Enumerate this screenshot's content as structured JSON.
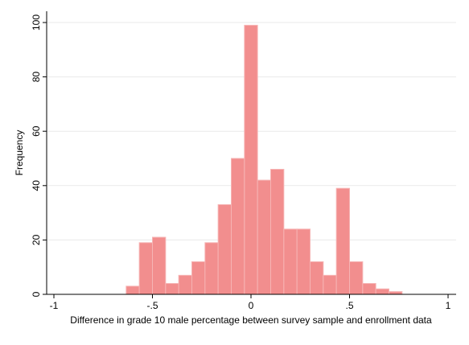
{
  "chart_data": {
    "type": "bar",
    "title": "",
    "xlabel": "Difference in grade 10 male percentage between survey sample and enrollment data",
    "ylabel": "Frequency",
    "xlim": [
      -1,
      1
    ],
    "ylim": [
      0,
      100
    ],
    "x_ticks": [
      "-1",
      "-.5",
      "0",
      ".5",
      "1"
    ],
    "x_tick_values": [
      -1,
      -0.5,
      0,
      0.5,
      1
    ],
    "y_ticks": [
      "0",
      "20",
      "40",
      "60",
      "80",
      "100"
    ],
    "y_tick_values": [
      0,
      20,
      40,
      60,
      80,
      100
    ],
    "grid": true,
    "bin_width": 0.0667,
    "bins": [
      {
        "x0": -0.6333,
        "x1": -0.5667,
        "value": 3
      },
      {
        "x0": -0.5667,
        "x1": -0.5,
        "value": 19
      },
      {
        "x0": -0.5,
        "x1": -0.4333,
        "value": 21
      },
      {
        "x0": -0.4333,
        "x1": -0.3667,
        "value": 4
      },
      {
        "x0": -0.3667,
        "x1": -0.3,
        "value": 7
      },
      {
        "x0": -0.3,
        "x1": -0.2333,
        "value": 12
      },
      {
        "x0": -0.2333,
        "x1": -0.1667,
        "value": 19
      },
      {
        "x0": -0.1667,
        "x1": -0.1,
        "value": 33
      },
      {
        "x0": -0.1,
        "x1": -0.0333,
        "value": 50
      },
      {
        "x0": -0.0333,
        "x1": 0.0333,
        "value": 99
      },
      {
        "x0": 0.0333,
        "x1": 0.1,
        "value": 42
      },
      {
        "x0": 0.1,
        "x1": 0.1667,
        "value": 46
      },
      {
        "x0": 0.1667,
        "x1": 0.2333,
        "value": 24
      },
      {
        "x0": 0.2333,
        "x1": 0.3,
        "value": 24
      },
      {
        "x0": 0.3,
        "x1": 0.3667,
        "value": 12
      },
      {
        "x0": 0.3667,
        "x1": 0.4333,
        "value": 7
      },
      {
        "x0": 0.4333,
        "x1": 0.5,
        "value": 39
      },
      {
        "x0": 0.5,
        "x1": 0.5667,
        "value": 12
      },
      {
        "x0": 0.5667,
        "x1": 0.6333,
        "value": 4
      },
      {
        "x0": 0.6333,
        "x1": 0.7,
        "value": 2
      },
      {
        "x0": 0.7,
        "x1": 0.7667,
        "value": 1
      }
    ],
    "colors": {
      "bar_fill": "#f28e8e",
      "bar_stroke": "#f6b4b4",
      "grid": "#eaeaea",
      "axis": "#000000"
    }
  }
}
